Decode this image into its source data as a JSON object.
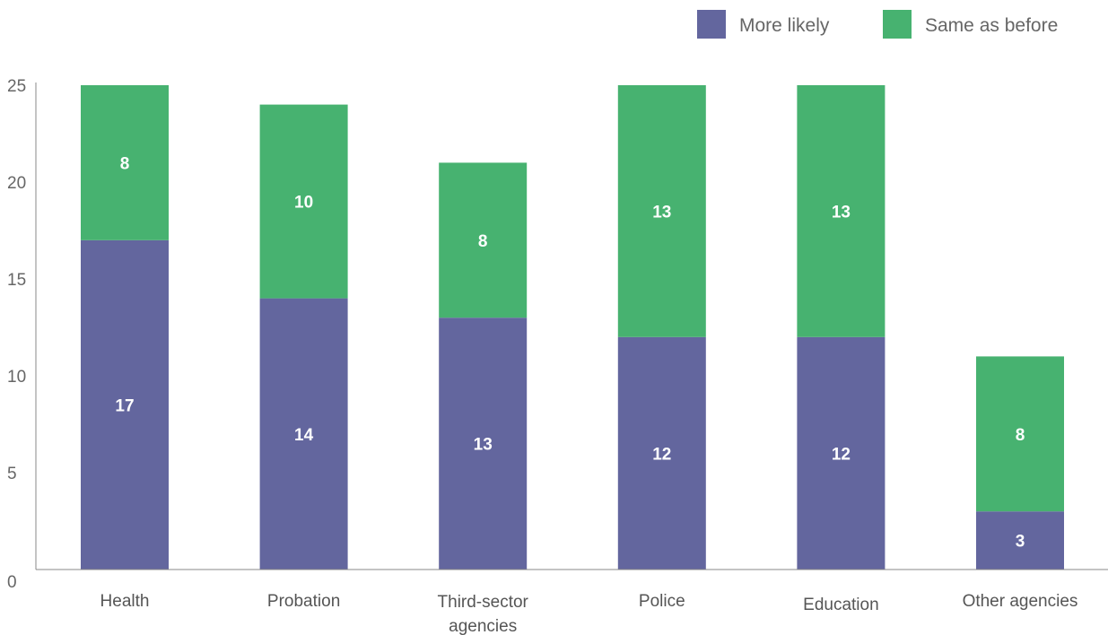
{
  "chart_data": {
    "type": "bar",
    "stacked": true,
    "categories": [
      [
        "Health"
      ],
      [
        "Probation"
      ],
      [
        "Third-sector",
        "agencies"
      ],
      [
        "Police"
      ],
      [
        "Education"
      ],
      [
        "Other agencies"
      ]
    ],
    "series": [
      {
        "name": "More likely",
        "color": "#63669e",
        "values": [
          17,
          14,
          13,
          12,
          12,
          3
        ]
      },
      {
        "name": "Same as before",
        "color": "#47b270",
        "values": [
          8,
          10,
          8,
          13,
          13,
          8
        ]
      }
    ],
    "data_labels": [
      [
        "17",
        "14",
        "13",
        "12",
        "12",
        "3"
      ],
      [
        "8",
        "10",
        "8",
        "13",
        "13",
        "8"
      ]
    ],
    "y_ticks": [
      0,
      5,
      10,
      15,
      20,
      25
    ],
    "ylim": [
      0,
      25
    ],
    "grid": false,
    "legend_position": "top-right"
  }
}
